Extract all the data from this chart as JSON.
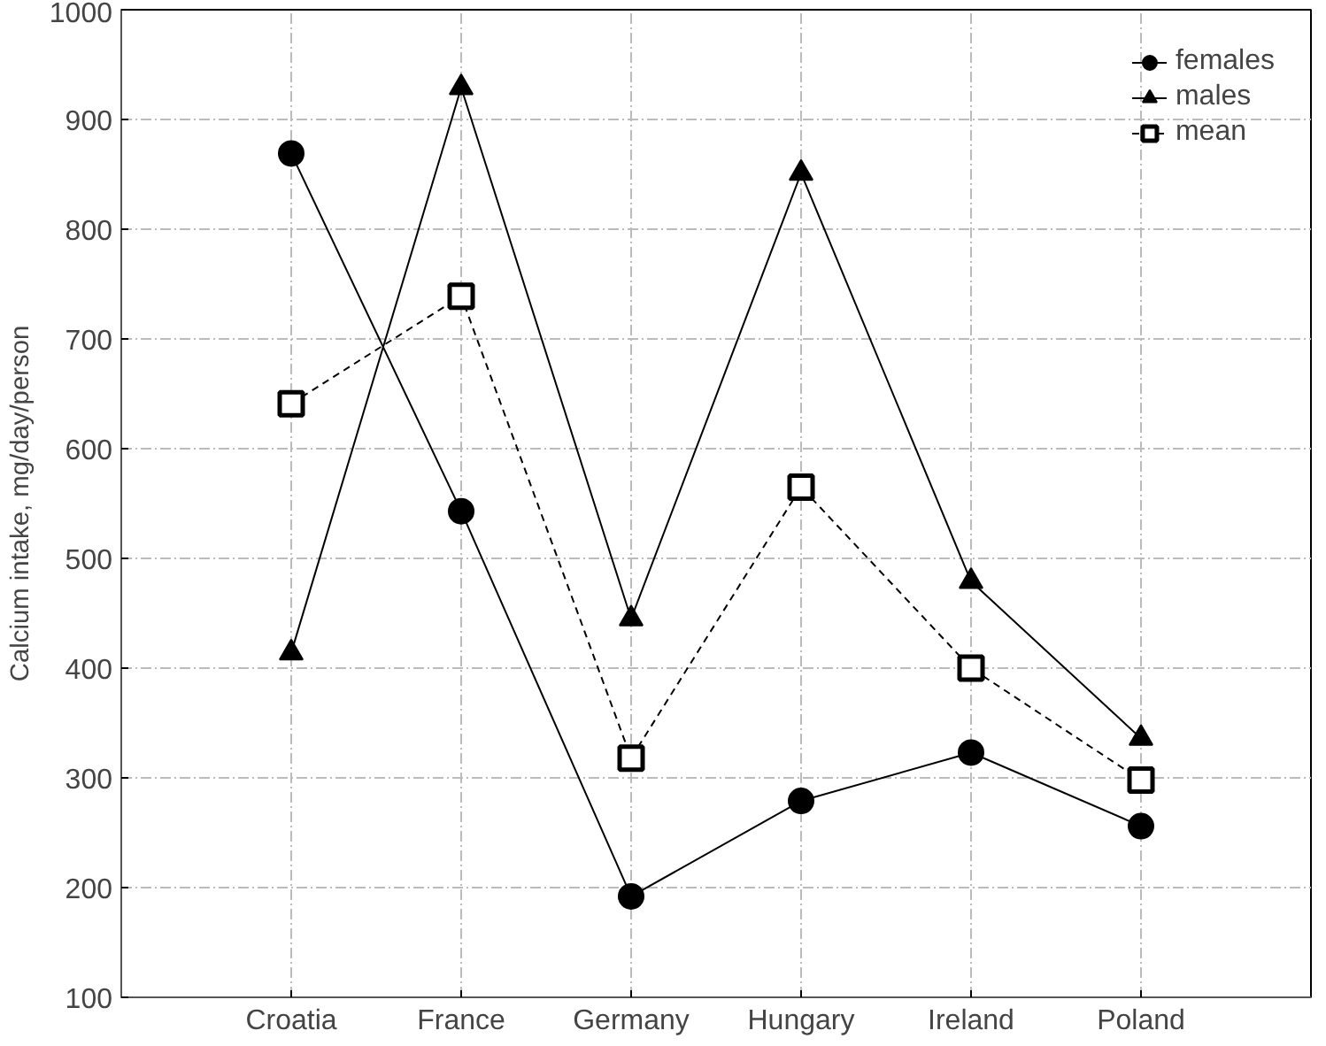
{
  "chart_data": {
    "type": "line",
    "ylabel": "Calcium intake, mg/day/person",
    "categories": [
      "Croatia",
      "France",
      "Germany",
      "Hungary",
      "Ireland",
      "Poland"
    ],
    "series": [
      {
        "name": "females",
        "color": "#000000",
        "marker": "circle",
        "line_style": "solid",
        "values": [
          869,
          543,
          192,
          279,
          323,
          256
        ]
      },
      {
        "name": "males",
        "color": "#000000",
        "marker": "triangle",
        "line_style": "solid",
        "values": [
          414,
          929,
          445,
          851,
          479,
          336
        ]
      },
      {
        "name": "mean",
        "color": "#000000",
        "marker": "square",
        "line_style": "dashed",
        "values": [
          641,
          739,
          318,
          565,
          400,
          298
        ]
      }
    ],
    "ylim": [
      100,
      1000
    ],
    "yticks": [
      100,
      200,
      300,
      400,
      500,
      600,
      700,
      800,
      900,
      1000
    ],
    "grid": true,
    "legend": "top right"
  }
}
